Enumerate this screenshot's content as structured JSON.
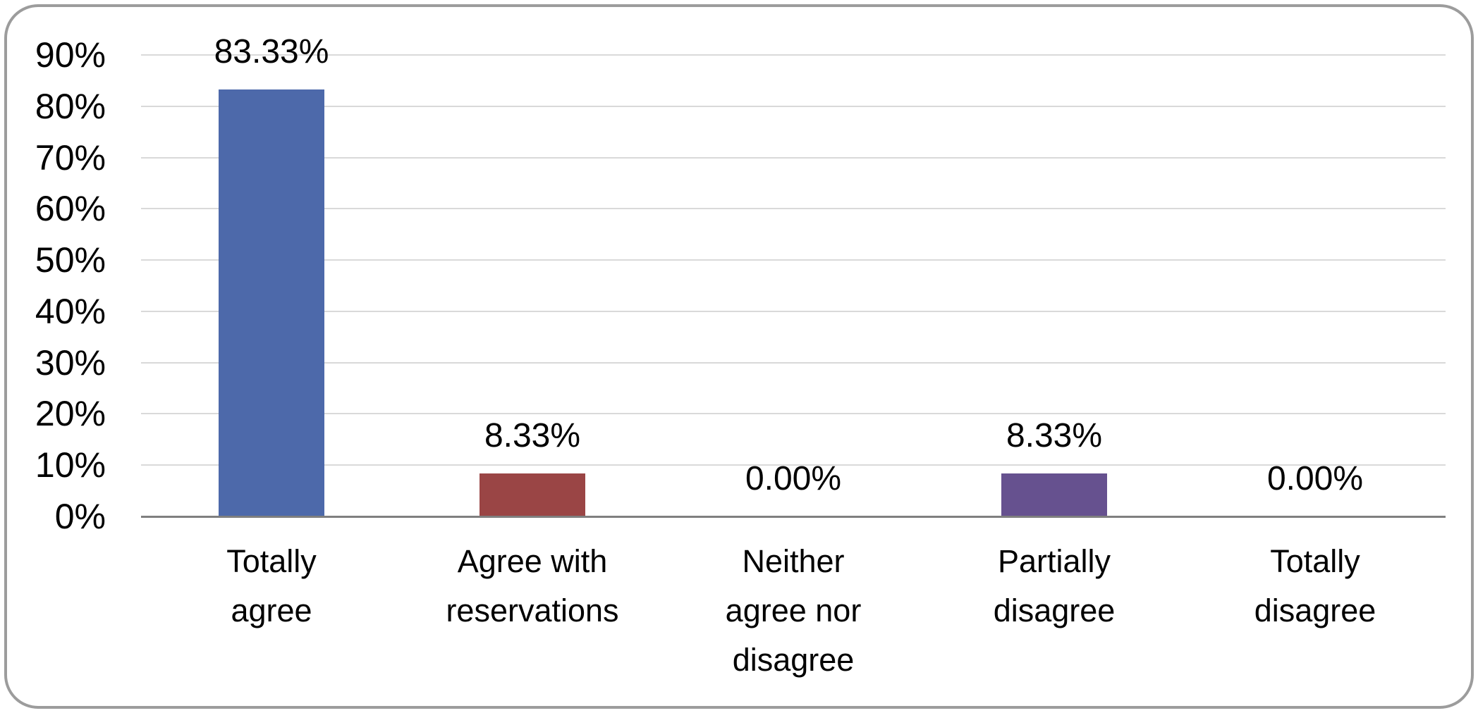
{
  "chart_data": {
    "type": "bar",
    "title": "",
    "xlabel": "",
    "ylabel": "",
    "ylim": [
      0,
      90
    ],
    "grid": "horizontal",
    "legend": "none",
    "y_ticks": [
      "0%",
      "10%",
      "20%",
      "30%",
      "40%",
      "50%",
      "60%",
      "70%",
      "80%",
      "90%"
    ],
    "categories": [
      "Totally agree",
      "Agree with reservations",
      "Neither agree nor disagree",
      "Partially disagree",
      "Totally disagree"
    ],
    "values": [
      83.33,
      8.33,
      0.0,
      8.33,
      0.0
    ],
    "bars": [
      {
        "category": "Totally agree",
        "category_display": "Totally\nagree",
        "value": 83.33,
        "label": "83.33%",
        "color": "#4d69aa"
      },
      {
        "category": "Agree with reservations",
        "category_display": "Agree with\nreservations",
        "value": 8.33,
        "label": "8.33%",
        "color": "#9a4545"
      },
      {
        "category": "Neither agree nor disagree",
        "category_display": "Neither\nagree nor\ndisagree",
        "value": 0.0,
        "label": "0.00%",
        "color": "#4d69aa"
      },
      {
        "category": "Partially disagree",
        "category_display": "Partially\ndisagree",
        "value": 8.33,
        "label": "8.33%",
        "color": "#66518f"
      },
      {
        "category": "Totally disagree",
        "category_display": "Totally\ndisagree",
        "value": 0.0,
        "label": "0.00%",
        "color": "#4d69aa"
      }
    ],
    "colors": {
      "bar_blue": "#4d69aa",
      "bar_red": "#9a4545",
      "bar_purple": "#66518f",
      "gridline": "#d9d9d9",
      "axis_line": "#7f7f7f",
      "frame_border": "#9c9c9c",
      "text": "#000000",
      "background": "#ffffff"
    }
  }
}
